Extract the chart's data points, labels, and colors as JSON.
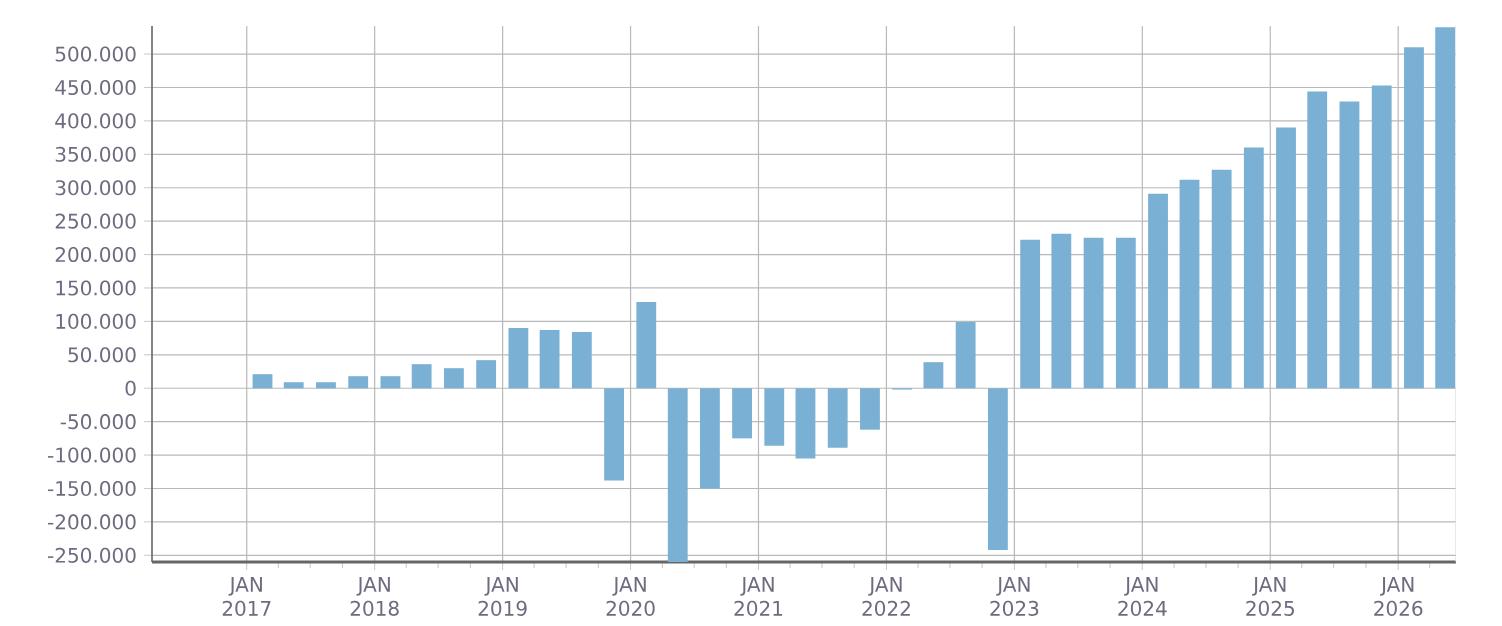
{
  "chart_data": {
    "type": "bar",
    "color": "#7ab0d3",
    "x": [
      "2017-02-15",
      "2017-05-15",
      "2017-08-15",
      "2017-11-15",
      "2018-02-15",
      "2018-05-15",
      "2018-08-15",
      "2018-11-15",
      "2019-02-15",
      "2019-05-15",
      "2019-08-15",
      "2019-11-15",
      "2020-02-15",
      "2020-05-15",
      "2020-08-15",
      "2020-11-15",
      "2021-02-15",
      "2021-05-15",
      "2021-08-15",
      "2021-11-15",
      "2022-02-15",
      "2022-05-15",
      "2022-08-15",
      "2022-11-15",
      "2023-02-15",
      "2023-05-15",
      "2023-08-15",
      "2023-11-15",
      "2024-02-15",
      "2024-05-15",
      "2024-08-15",
      "2024-11-15",
      "2025-02-15",
      "2025-05-15",
      "2025-08-15",
      "2025-11-15",
      "2026-02-15",
      "2026-05-15"
    ],
    "values": [
      21000,
      9000,
      9000,
      18000,
      18000,
      36000,
      30000,
      42000,
      90000,
      87000,
      84000,
      -138000,
      129000,
      -260000,
      -150000,
      -75000,
      -86000,
      -105000,
      -89000,
      -62000,
      -2000,
      39000,
      99000,
      -242000,
      222000,
      231000,
      225000,
      225000,
      291000,
      312000,
      327000,
      360000,
      390000,
      444000,
      429000,
      453000,
      510000,
      540000
    ],
    "xlim": [
      "2016-04-05",
      "2026-06-15"
    ],
    "xticks": [
      {
        "value": "2017-01-01",
        "label": "JAN 2017"
      },
      {
        "value": "2017-04-01",
        "label": null
      },
      {
        "value": "2017-07-01",
        "label": null
      },
      {
        "value": "2017-10-01",
        "label": null
      },
      {
        "value": "2018-01-01",
        "label": "JAN 2018"
      },
      {
        "value": "2018-04-01",
        "label": null
      },
      {
        "value": "2018-07-01",
        "label": null
      },
      {
        "value": "2018-10-01",
        "label": null
      },
      {
        "value": "2019-01-01",
        "label": "JAN 2019"
      },
      {
        "value": "2019-04-01",
        "label": null
      },
      {
        "value": "2019-07-01",
        "label": null
      },
      {
        "value": "2019-10-01",
        "label": null
      },
      {
        "value": "2020-01-01",
        "label": "JAN 2020"
      },
      {
        "value": "2020-04-01",
        "label": null
      },
      {
        "value": "2020-07-01",
        "label": null
      },
      {
        "value": "2020-10-01",
        "label": null
      },
      {
        "value": "2021-01-01",
        "label": "JAN 2021"
      },
      {
        "value": "2021-04-01",
        "label": null
      },
      {
        "value": "2021-07-01",
        "label": null
      },
      {
        "value": "2021-10-01",
        "label": null
      },
      {
        "value": "2022-01-01",
        "label": "JAN 2022"
      },
      {
        "value": "2022-04-01",
        "label": null
      },
      {
        "value": "2022-07-01",
        "label": null
      },
      {
        "value": "2022-10-01",
        "label": null
      },
      {
        "value": "2023-01-01",
        "label": "JAN 2023"
      },
      {
        "value": "2023-04-01",
        "label": null
      },
      {
        "value": "2023-07-01",
        "label": null
      },
      {
        "value": "2023-10-01",
        "label": null
      },
      {
        "value": "2024-01-01",
        "label": "JAN 2024"
      },
      {
        "value": "2024-04-01",
        "label": null
      },
      {
        "value": "2024-07-01",
        "label": null
      },
      {
        "value": "2024-10-01",
        "label": null
      },
      {
        "value": "2025-01-01",
        "label": "JAN 2025"
      },
      {
        "value": "2025-04-01",
        "label": null
      },
      {
        "value": "2025-07-01",
        "label": null
      },
      {
        "value": "2025-10-01",
        "label": null
      },
      {
        "value": "2026-01-01",
        "label": "JAN 2026"
      },
      {
        "value": "2026-04-01",
        "label": null
      }
    ],
    "ylim": [
      -260000,
      542000
    ],
    "yticks": [
      {
        "value": -250000,
        "label": "-250.000"
      },
      {
        "value": -200000,
        "label": "-200.000"
      },
      {
        "value": -150000,
        "label": "-150.000"
      },
      {
        "value": -100000,
        "label": "-100.000"
      },
      {
        "value": -50000,
        "label": "-50.000"
      },
      {
        "value": 0,
        "label": "0"
      },
      {
        "value": 50000,
        "label": "50.000"
      },
      {
        "value": 100000,
        "label": "100.000"
      },
      {
        "value": 150000,
        "label": "150.000"
      },
      {
        "value": 200000,
        "label": "200.000"
      },
      {
        "value": 250000,
        "label": "250.000"
      },
      {
        "value": 300000,
        "label": "300.000"
      },
      {
        "value": 350000,
        "label": "350.000"
      },
      {
        "value": 400000,
        "label": "400.000"
      },
      {
        "value": 450000,
        "label": "450.000"
      },
      {
        "value": 500000,
        "label": "500.000"
      }
    ],
    "grid": true
  }
}
